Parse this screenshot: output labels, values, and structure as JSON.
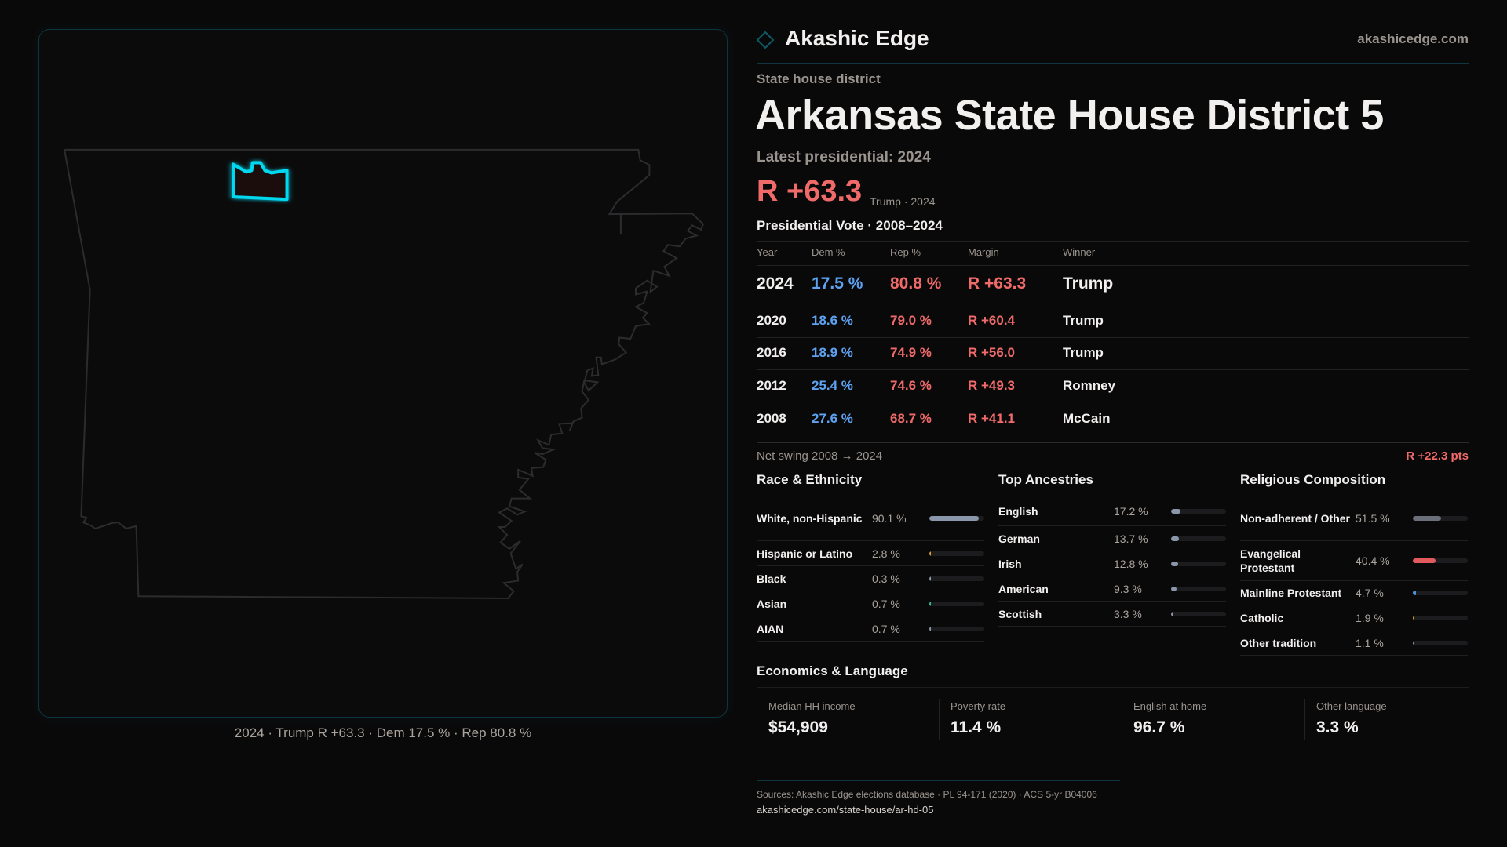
{
  "brand": {
    "name": "Akashic Edge",
    "url": "akashicedge.com",
    "accent": "#0e4a55"
  },
  "colors": {
    "rep": "#f06a6a",
    "dem": "#5ea2f2",
    "district_stroke": "#00d8f0",
    "district_fill": "#1e0e10"
  },
  "header": {
    "kicker": "State house district",
    "title": "Arkansas State House District 5",
    "latest_label": "Latest presidential: 2024",
    "margin_big": "R +63.3",
    "margin_sub": "Trump · 2024"
  },
  "map": {
    "caption": "2024 · Trump R +63.3 · Dem 17.5 % · Rep 80.8 %"
  },
  "votes": {
    "title": "Presidential Vote · 2008–2024",
    "columns": [
      "Year",
      "Dem %",
      "Rep %",
      "Margin",
      "Winner"
    ],
    "rows": [
      {
        "year": "2024",
        "dem": "17.5 %",
        "rep": "80.8 %",
        "margin": "R +63.3",
        "winner": "Trump"
      },
      {
        "year": "2020",
        "dem": "18.6 %",
        "rep": "79.0 %",
        "margin": "R +60.4",
        "winner": "Trump"
      },
      {
        "year": "2016",
        "dem": "18.9 %",
        "rep": "74.9 %",
        "margin": "R +56.0",
        "winner": "Trump"
      },
      {
        "year": "2012",
        "dem": "25.4 %",
        "rep": "74.6 %",
        "margin": "R +49.3",
        "winner": "Romney"
      },
      {
        "year": "2008",
        "dem": "27.6 %",
        "rep": "68.7 %",
        "margin": "R +41.1",
        "winner": "McCain"
      }
    ],
    "swing_label": "Net swing 2008 → 2024",
    "swing_value": "R +22.3 pts"
  },
  "race": {
    "title": "Race & Ethnicity",
    "items": [
      {
        "label": "White, non-Hispanic",
        "value": "90.1 %",
        "pct": 90.1,
        "color": "#8a96aa"
      },
      {
        "label": "Hispanic or Latino",
        "value": "2.8 %",
        "pct": 2.8,
        "color": "#e0a030"
      },
      {
        "label": "Black",
        "value": "0.3 %",
        "pct": 0.3,
        "color": "#8a96aa"
      },
      {
        "label": "Asian",
        "value": "0.7 %",
        "pct": 0.7,
        "color": "#30c090"
      },
      {
        "label": "AIAN",
        "value": "0.7 %",
        "pct": 0.7,
        "color": "#8a96aa"
      }
    ]
  },
  "ancestry": {
    "title": "Top Ancestries",
    "items": [
      {
        "label": "English",
        "value": "17.2 %",
        "pct": 17.2,
        "color": "#8a96aa"
      },
      {
        "label": "German",
        "value": "13.7 %",
        "pct": 13.7,
        "color": "#8a96aa"
      },
      {
        "label": "Irish",
        "value": "12.8 %",
        "pct": 12.8,
        "color": "#8a96aa"
      },
      {
        "label": "American",
        "value": "9.3 %",
        "pct": 9.3,
        "color": "#8a96aa"
      },
      {
        "label": "Scottish",
        "value": "3.3 %",
        "pct": 3.3,
        "color": "#8a96aa"
      }
    ]
  },
  "religion": {
    "title": "Religious Composition",
    "items": [
      {
        "label": "Non-adherent / Other",
        "value": "51.5 %",
        "pct": 51.5,
        "color": "#6a6f7a"
      },
      {
        "label": "Evangelical Protestant",
        "value": "40.4 %",
        "pct": 40.4,
        "color": "#e05a5e"
      },
      {
        "label": "Mainline Protestant",
        "value": "4.7 %",
        "pct": 4.7,
        "color": "#4a90e0"
      },
      {
        "label": "Catholic",
        "value": "1.9 %",
        "pct": 1.9,
        "color": "#e0a030"
      },
      {
        "label": "Other tradition",
        "value": "1.1 %",
        "pct": 1.1,
        "color": "#8a96aa"
      }
    ]
  },
  "economics": {
    "title": "Economics & Language",
    "cards": [
      {
        "label": "Median HH income",
        "value": "$54,909"
      },
      {
        "label": "Poverty rate",
        "value": "11.4 %"
      },
      {
        "label": "English at home",
        "value": "96.7 %"
      },
      {
        "label": "Other language",
        "value": "3.3 %"
      }
    ]
  },
  "footer": {
    "sources": "Sources: Akashic Edge elections database · PL 94-171 (2020) · ACS 5-yr B04006",
    "url": "akashicedge.com/state-house/ar-hd-05"
  }
}
